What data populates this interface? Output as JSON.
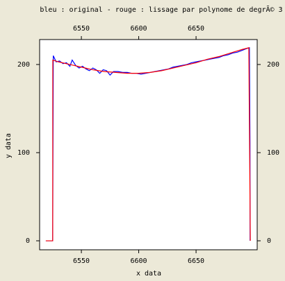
{
  "chart_data": {
    "type": "line",
    "title": "bleu : original - rouge : lissage par polynome de degrÃ© 3",
    "x_label": "x data",
    "y_label": "y data",
    "xlim": [
      6513.6,
      6703.3
    ],
    "ylim": [
      -10.2,
      228.3
    ],
    "xticks": [
      6550,
      6600,
      6650
    ],
    "yticks": [
      0,
      100,
      200
    ],
    "series": [
      {
        "color": "#0000ff",
        "x": [
          6519,
          6525,
          6525.5,
          6528,
          6531,
          6534,
          6537,
          6540,
          6542,
          6545,
          6548,
          6551,
          6554,
          6557,
          6560,
          6563,
          6566,
          6569,
          6572,
          6575,
          6578,
          6582,
          6586,
          6590,
          6594,
          6598,
          6602,
          6606,
          6610,
          6614,
          6618,
          6622,
          6626,
          6630,
          6634,
          6638,
          6642,
          6646,
          6650,
          6654,
          6658,
          6662,
          6666,
          6670,
          6674,
          6678,
          6682,
          6686,
          6690,
          6694,
          6696.5,
          6697,
          6697.1
        ],
        "values": [
          0,
          0,
          210,
          203,
          204,
          201,
          202,
          198,
          205,
          199,
          196,
          198,
          195,
          193,
          196,
          194,
          190,
          194,
          193,
          188,
          192,
          192,
          191,
          191,
          190,
          190,
          189,
          190,
          191,
          192,
          193,
          194,
          195,
          197,
          198,
          199,
          200,
          202,
          203,
          204,
          205,
          206,
          207,
          208,
          210,
          211,
          213,
          214,
          216,
          218,
          219,
          112,
          0
        ]
      },
      {
        "color": "#ff0000",
        "x": [
          6519,
          6525,
          6525.1,
          6530,
          6540,
          6550,
          6560,
          6570,
          6580,
          6590,
          6600,
          6610,
          6620,
          6630,
          6640,
          6650,
          6660,
          6670,
          6680,
          6690,
          6696,
          6697.3
        ],
        "values": [
          0,
          0,
          205,
          203,
          200,
          197,
          194,
          192,
          191,
          190,
          190,
          191,
          193,
          196,
          199,
          202,
          206,
          209,
          213,
          217,
          219,
          0
        ]
      }
    ]
  }
}
